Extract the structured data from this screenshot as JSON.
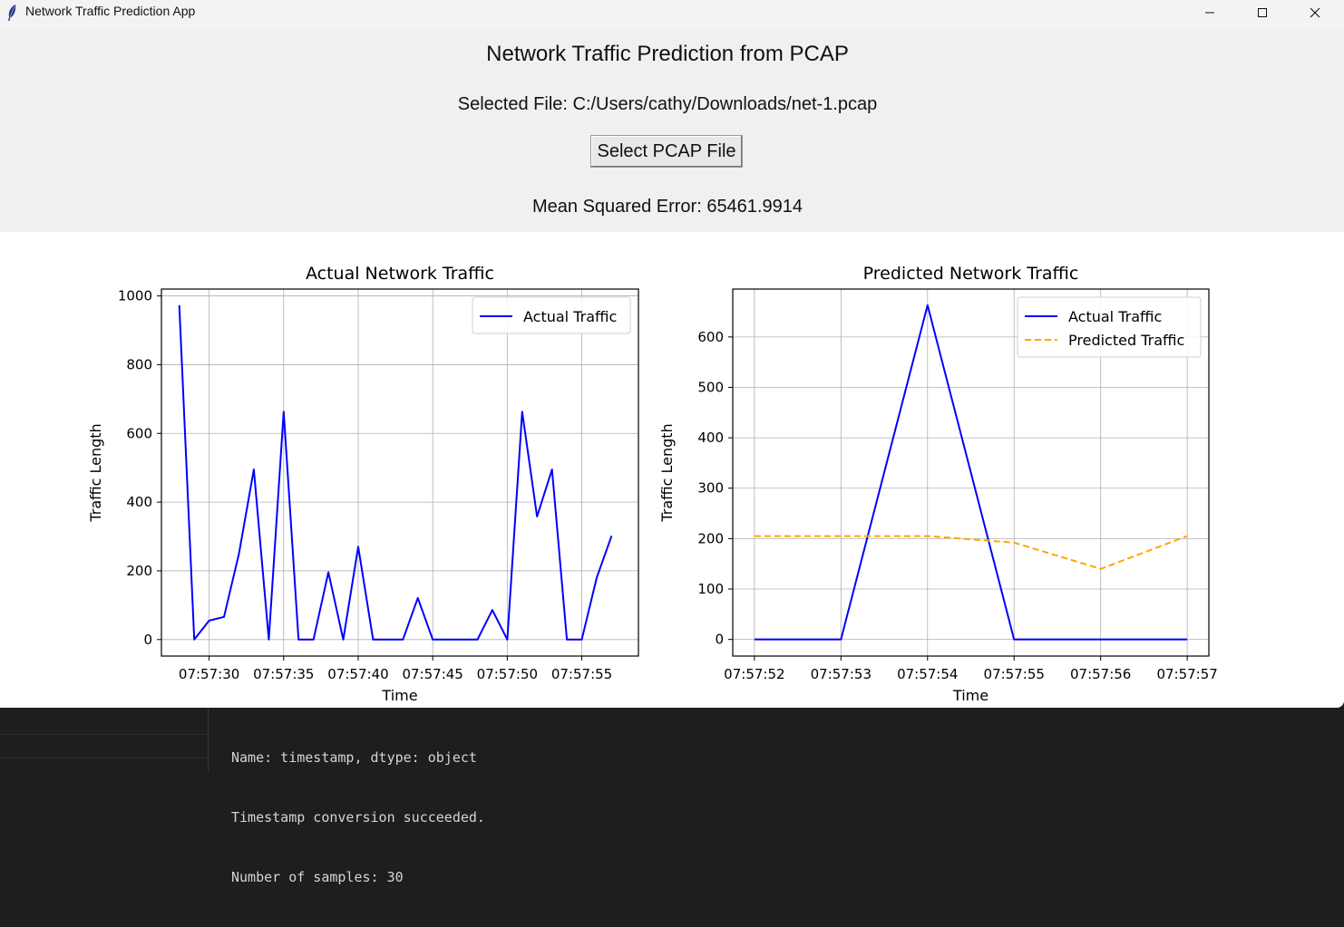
{
  "window": {
    "title": "Network Traffic Prediction App",
    "controls": [
      "minimize",
      "maximize",
      "close"
    ]
  },
  "app": {
    "heading": "Network Traffic Prediction from PCAP",
    "file_label": "Selected File: C:/Users/cathy/Downloads/net-1.pcap",
    "select_button": "Select PCAP File",
    "mse_label": "Mean Squared Error: 65461.9914"
  },
  "console": {
    "lines": [
      "Name: timestamp, dtype: object",
      "Timestamp conversion succeeded.",
      "Number of samples: 30"
    ]
  },
  "colors": {
    "actual": "#0000ff",
    "predicted": "#ffa500"
  },
  "chart_data": [
    {
      "type": "line",
      "title": "Actual Network Traffic",
      "xlabel": "Time",
      "ylabel": "Traffic Length",
      "xlim": [
        26.8,
        58.8
      ],
      "ylim": [
        -48,
        1020
      ],
      "x_tick_values": [
        30,
        35,
        40,
        45,
        50,
        55
      ],
      "x_ticks": [
        "07:57:30",
        "07:57:35",
        "07:57:40",
        "07:57:45",
        "07:57:50",
        "07:57:55"
      ],
      "y_ticks": [
        0,
        200,
        400,
        600,
        800,
        1000
      ],
      "grid": true,
      "legend": "top-right",
      "series": [
        {
          "name": "Actual Traffic",
          "color": "#0000ff",
          "style": "solid",
          "x": [
            28,
            29,
            30,
            31,
            32,
            33,
            34,
            35,
            36,
            37,
            38,
            39,
            40,
            41,
            42,
            43,
            44,
            45,
            46,
            47,
            48,
            49,
            50,
            51,
            52,
            53,
            54,
            55,
            56,
            57
          ],
          "values": [
            973,
            0,
            55,
            66,
            250,
            495,
            0,
            663,
            0,
            0,
            196,
            0,
            270,
            0,
            0,
            0,
            121,
            0,
            0,
            0,
            0,
            86,
            0,
            663,
            358,
            495,
            0,
            0,
            180,
            302
          ]
        }
      ]
    },
    {
      "type": "line",
      "title": "Predicted Network Traffic",
      "xlabel": "Time",
      "ylabel": "Traffic Length",
      "xlim": [
        51.75,
        57.25
      ],
      "ylim": [
        -33,
        695
      ],
      "x_tick_values": [
        52,
        53,
        54,
        55,
        56,
        57
      ],
      "x_ticks": [
        "07:57:52",
        "07:57:53",
        "07:57:54",
        "07:57:55",
        "07:57:56",
        "07:57:57"
      ],
      "y_ticks": [
        0,
        100,
        200,
        300,
        400,
        500,
        600
      ],
      "grid": true,
      "legend": "top-right",
      "series": [
        {
          "name": "Actual Traffic",
          "color": "#0000ff",
          "style": "solid",
          "x": [
            52,
            53,
            54,
            55,
            56,
            57
          ],
          "values": [
            0,
            0,
            663,
            0,
            0,
            0
          ]
        },
        {
          "name": "Predicted Traffic",
          "color": "#ffa500",
          "style": "dashed",
          "x": [
            52,
            53,
            54,
            55,
            56,
            57
          ],
          "values": [
            205,
            205,
            205,
            192,
            140,
            205
          ]
        }
      ]
    }
  ]
}
